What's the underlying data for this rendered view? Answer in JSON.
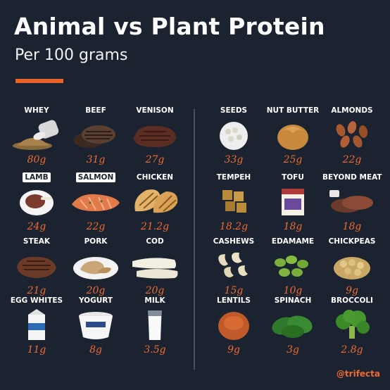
{
  "header": {
    "title": "Animal vs Plant Protein",
    "subtitle": "Per 100 grams"
  },
  "colors": {
    "background": "#1b2230",
    "accent": "#e8622a",
    "value_text": "#ee6a30"
  },
  "animal": [
    {
      "label": "WHEY",
      "value": "80g",
      "icon": "whey-powder-icon"
    },
    {
      "label": "BEEF",
      "value": "31g",
      "icon": "beef-patties-icon"
    },
    {
      "label": "VENISON",
      "value": "27g",
      "icon": "venison-steak-icon"
    },
    {
      "label": "LAMB",
      "value": "24g",
      "icon": "lamb-plate-icon"
    },
    {
      "label": "SALMON",
      "value": "22g",
      "icon": "salmon-fillet-icon"
    },
    {
      "label": "CHICKEN",
      "value": "21.2g",
      "icon": "grilled-chicken-icon"
    },
    {
      "label": "STEAK",
      "value": "21g",
      "icon": "steak-icon"
    },
    {
      "label": "PORK",
      "value": "20g",
      "icon": "pork-plate-icon"
    },
    {
      "label": "COD",
      "value": "20g",
      "icon": "cod-fillet-icon"
    },
    {
      "label": "EGG WHITES",
      "value": "11g",
      "icon": "egg-whites-carton-icon"
    },
    {
      "label": "YOGURT",
      "value": "8g",
      "icon": "yogurt-cup-icon"
    },
    {
      "label": "MILK",
      "value": "3.5g",
      "icon": "milk-glass-icon"
    }
  ],
  "plant": [
    {
      "label": "SEEDS",
      "value": "33g",
      "icon": "seeds-bowl-icon"
    },
    {
      "label": "NUT BUTTER",
      "value": "25g",
      "icon": "nut-butter-icon"
    },
    {
      "label": "ALMONDS",
      "value": "22g",
      "icon": "almonds-icon"
    },
    {
      "label": "TEMPEH",
      "value": "18.2g",
      "icon": "tempeh-cubes-icon"
    },
    {
      "label": "TOFU",
      "value": "18g",
      "icon": "tofu-package-icon"
    },
    {
      "label": "BEYOND MEAT",
      "value": "18g",
      "icon": "beyond-meat-patties-icon"
    },
    {
      "label": "CASHEWS",
      "value": "15g",
      "icon": "cashews-icon"
    },
    {
      "label": "EDAMAME",
      "value": "10g",
      "icon": "edamame-icon"
    },
    {
      "label": "CHICKPEAS",
      "value": "9g",
      "icon": "chickpeas-icon"
    },
    {
      "label": "LENTILS",
      "value": "9g",
      "icon": "lentils-icon"
    },
    {
      "label": "SPINACH",
      "value": "3g",
      "icon": "spinach-icon"
    },
    {
      "label": "BROCCOLI",
      "value": "2.8g",
      "icon": "broccoli-icon"
    }
  ],
  "footer": {
    "handle": "@trifecta"
  }
}
